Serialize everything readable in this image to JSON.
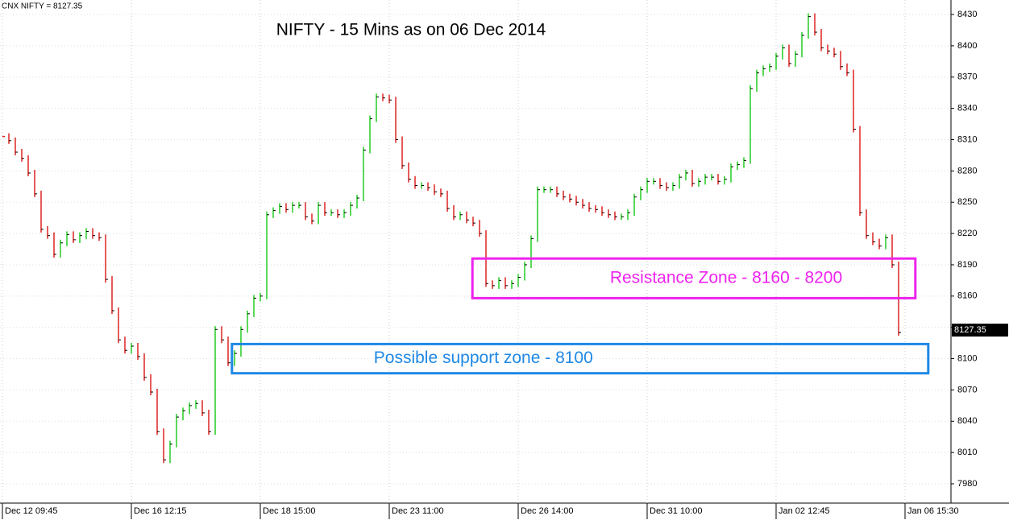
{
  "chart_data": {
    "type": "ohlc",
    "header": "CNX NIFTY = 8127.35",
    "title": "NIFTY - 15 Mins as on 06 Dec 2014",
    "close": [
      8313,
      8309,
      8298,
      8292,
      8278,
      8258,
      8224,
      8218,
      8200,
      8211,
      8219,
      8214,
      8218,
      8222,
      8218,
      8216,
      8176,
      8146,
      8118,
      8108,
      8112,
      8102,
      8082,
      8068,
      8030,
      8003,
      8018,
      8044,
      8050,
      8055,
      8057,
      8048,
      8030,
      8128,
      8118,
      8096,
      8105,
      8128,
      8143,
      8158,
      8160,
      8238,
      8242,
      8246,
      8243,
      8247,
      8247,
      8236,
      8232,
      8247,
      8240,
      8240,
      8238,
      8240,
      8247,
      8254,
      8300,
      8330,
      8351,
      8350,
      8348,
      8310,
      8285,
      8272,
      8266,
      8266,
      8264,
      8260,
      8258,
      8244,
      8236,
      8238,
      8233,
      8230,
      8220,
      8172,
      8170,
      8175,
      8170,
      8172,
      8178,
      8190,
      8215,
      8262,
      8262,
      8262,
      8258,
      8255,
      8253,
      8250,
      8247,
      8244,
      8243,
      8240,
      8238,
      8236,
      8236,
      8240,
      8255,
      8262,
      8270,
      8270,
      8266,
      8264,
      8266,
      8274,
      8278,
      8268,
      8270,
      8274,
      8274,
      8270,
      8272,
      8284,
      8286,
      8290,
      8359,
      8374,
      8378,
      8380,
      8390,
      8398,
      8383,
      8392,
      8410,
      8428,
      8413,
      8398,
      8395,
      8392,
      8380,
      8374,
      8320,
      8240,
      8218,
      8212,
      8208,
      8216,
      8190,
      8125
    ],
    "up_color": "#22cc22",
    "down_color": "#dd2222",
    "xlim": [
      -0.375,
      147.125
    ],
    "ylim": [
      7961.5,
      8443.9
    ],
    "xticks": [
      {
        "value": 0,
        "label": "Dec 12 09:45"
      },
      {
        "value": 20,
        "label": "Dec 16 12:15"
      },
      {
        "value": 40,
        "label": "Dec 18 15:00"
      },
      {
        "value": 60,
        "label": "Dec 23 11:00"
      },
      {
        "value": 80,
        "label": "Dec 26 14:00"
      },
      {
        "value": 100,
        "label": "Dec 31 10:00"
      },
      {
        "value": 120,
        "label": "Jan 02 12:45"
      },
      {
        "value": 140,
        "label": "Jan 06 15:30"
      }
    ],
    "yticks": [
      7980,
      8010,
      8040,
      8070,
      8100,
      8130,
      8160,
      8190,
      8220,
      8250,
      8280,
      8310,
      8340,
      8370,
      8400,
      8430
    ],
    "grid": true,
    "last_price": 8127.35,
    "annotations": [
      {
        "text": "Resistance Zone - 8160 - 8200",
        "color": "#ee22ee",
        "xlim": [
          72.9,
          141.6
        ],
        "ylim": [
          8158,
          8196
        ]
      },
      {
        "text": "Possible support zone - 8100",
        "color": "#1e88e5",
        "xlim": [
          35.6,
          143.6
        ],
        "ylim": [
          8086,
          8114
        ]
      }
    ]
  }
}
